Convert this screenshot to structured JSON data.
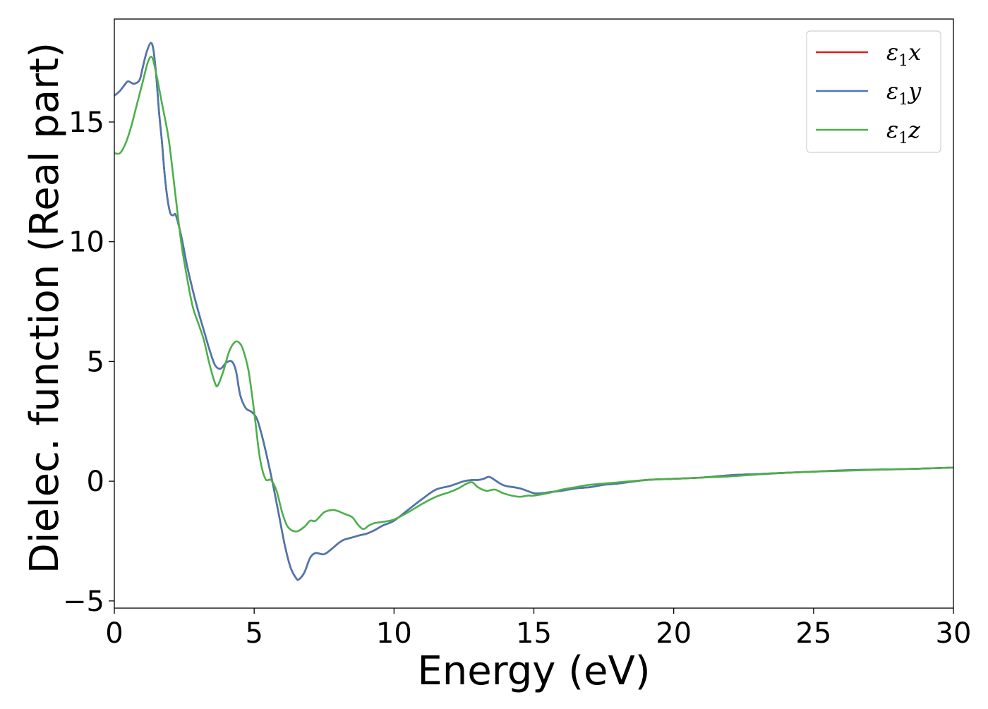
{
  "chart_data": {
    "type": "line",
    "xlabel": "Energy (eV)",
    "ylabel": "Dielec. function (Real part)",
    "xlim": [
      0,
      30
    ],
    "ylim": [
      -5.3,
      19.3
    ],
    "xticks": [
      0,
      5,
      10,
      15,
      20,
      25,
      30
    ],
    "xtick_labels": [
      "0",
      "5",
      "10",
      "15",
      "20",
      "25",
      "30"
    ],
    "yticks": [
      -5,
      0,
      5,
      10,
      15
    ],
    "ytick_labels": [
      "−5",
      "0",
      "5",
      "10",
      "15"
    ],
    "grid": false,
    "legend": "top-right",
    "series": [
      {
        "name": "ε1x",
        "label_main": "ε",
        "label_sub": "1",
        "label_end": "x",
        "color": "#e41a1c",
        "x": [
          0,
          0.2,
          0.4,
          0.5,
          0.7,
          0.9,
          1.0,
          1.15,
          1.3,
          1.4,
          1.5,
          1.6,
          1.7,
          1.8,
          1.9,
          2.0,
          2.1,
          2.2,
          2.4,
          2.6,
          2.8,
          3.0,
          3.2,
          3.4,
          3.6,
          3.8,
          4.0,
          4.2,
          4.35,
          4.5,
          4.7,
          4.9,
          5.1,
          5.3,
          5.5,
          5.7,
          5.9,
          6.1,
          6.3,
          6.5,
          6.6,
          6.8,
          7.0,
          7.2,
          7.5,
          7.8,
          8.0,
          8.2,
          8.5,
          8.8,
          9.0,
          9.3,
          9.6,
          10.0,
          10.5,
          11.0,
          11.5,
          12.0,
          12.5,
          12.8,
          13.0,
          13.2,
          13.4,
          13.6,
          13.8,
          14.0,
          14.5,
          15.0,
          15.3,
          15.6,
          16.0,
          16.5,
          17.0,
          17.5,
          18.0,
          19.0,
          20.0,
          21.0,
          22.0,
          23.0,
          24.0,
          25.0,
          26.0,
          27.0,
          28.0,
          29.0,
          30.0
        ],
        "values": [
          16.1,
          16.3,
          16.6,
          16.7,
          16.6,
          16.75,
          17.2,
          17.9,
          18.3,
          18.0,
          16.9,
          15.4,
          14.2,
          12.8,
          11.8,
          11.2,
          11.1,
          11.1,
          10.2,
          9.0,
          8.0,
          7.1,
          6.3,
          5.5,
          4.85,
          4.7,
          4.95,
          5.0,
          4.6,
          3.6,
          3.05,
          2.9,
          2.6,
          1.8,
          0.8,
          -0.3,
          -1.5,
          -2.7,
          -3.6,
          -4.05,
          -4.1,
          -3.8,
          -3.2,
          -3.0,
          -3.05,
          -2.8,
          -2.6,
          -2.45,
          -2.35,
          -2.25,
          -2.2,
          -2.05,
          -1.85,
          -1.65,
          -1.2,
          -0.75,
          -0.35,
          -0.2,
          0.0,
          0.05,
          0.05,
          0.1,
          0.18,
          0.05,
          -0.1,
          -0.2,
          -0.3,
          -0.5,
          -0.5,
          -0.45,
          -0.4,
          -0.3,
          -0.25,
          -0.15,
          -0.1,
          0.05,
          0.1,
          0.15,
          0.25,
          0.3,
          0.35,
          0.4,
          0.45,
          0.48,
          0.5,
          0.53,
          0.57
        ]
      },
      {
        "name": "ε1y",
        "label_main": "ε",
        "label_sub": "1",
        "label_end": "y",
        "color": "#4a78b0",
        "x": [
          0,
          0.2,
          0.4,
          0.5,
          0.7,
          0.9,
          1.0,
          1.15,
          1.3,
          1.4,
          1.5,
          1.6,
          1.7,
          1.8,
          1.9,
          2.0,
          2.1,
          2.2,
          2.4,
          2.6,
          2.8,
          3.0,
          3.2,
          3.4,
          3.6,
          3.8,
          4.0,
          4.2,
          4.35,
          4.5,
          4.7,
          4.9,
          5.1,
          5.3,
          5.5,
          5.7,
          5.9,
          6.1,
          6.3,
          6.5,
          6.6,
          6.8,
          7.0,
          7.2,
          7.5,
          7.8,
          8.0,
          8.2,
          8.5,
          8.8,
          9.0,
          9.3,
          9.6,
          10.0,
          10.5,
          11.0,
          11.5,
          12.0,
          12.5,
          12.8,
          13.0,
          13.2,
          13.4,
          13.6,
          13.8,
          14.0,
          14.5,
          15.0,
          15.3,
          15.6,
          16.0,
          16.5,
          17.0,
          17.5,
          18.0,
          19.0,
          20.0,
          21.0,
          22.0,
          23.0,
          24.0,
          25.0,
          26.0,
          27.0,
          28.0,
          29.0,
          30.0
        ],
        "values": [
          16.1,
          16.3,
          16.6,
          16.7,
          16.6,
          16.75,
          17.2,
          17.9,
          18.3,
          18.0,
          16.9,
          15.4,
          14.2,
          12.8,
          11.8,
          11.2,
          11.1,
          11.1,
          10.2,
          9.0,
          8.0,
          7.1,
          6.3,
          5.5,
          4.85,
          4.7,
          4.95,
          5.0,
          4.6,
          3.6,
          3.05,
          2.9,
          2.6,
          1.8,
          0.8,
          -0.3,
          -1.5,
          -2.7,
          -3.6,
          -4.05,
          -4.1,
          -3.8,
          -3.2,
          -3.0,
          -3.05,
          -2.8,
          -2.6,
          -2.45,
          -2.35,
          -2.25,
          -2.2,
          -2.05,
          -1.85,
          -1.65,
          -1.2,
          -0.75,
          -0.35,
          -0.2,
          0.0,
          0.05,
          0.05,
          0.1,
          0.18,
          0.05,
          -0.1,
          -0.2,
          -0.3,
          -0.5,
          -0.5,
          -0.45,
          -0.4,
          -0.3,
          -0.25,
          -0.15,
          -0.1,
          0.05,
          0.1,
          0.15,
          0.25,
          0.3,
          0.35,
          0.4,
          0.45,
          0.48,
          0.5,
          0.53,
          0.57
        ]
      },
      {
        "name": "ε1z",
        "label_main": "ε",
        "label_sub": "1",
        "label_end": "z",
        "color": "#4daf4a",
        "x": [
          0,
          0.2,
          0.4,
          0.6,
          0.8,
          1.0,
          1.2,
          1.35,
          1.5,
          1.7,
          1.9,
          2.0,
          2.2,
          2.4,
          2.6,
          2.8,
          3.0,
          3.2,
          3.4,
          3.6,
          3.7,
          3.9,
          4.1,
          4.3,
          4.45,
          4.6,
          4.8,
          5.0,
          5.2,
          5.4,
          5.6,
          5.8,
          6.0,
          6.2,
          6.5,
          6.8,
          7.0,
          7.2,
          7.5,
          7.8,
          8.0,
          8.2,
          8.5,
          8.7,
          8.9,
          9.1,
          9.3,
          9.6,
          10.0,
          10.5,
          11.0,
          11.5,
          12.0,
          12.3,
          12.6,
          12.8,
          13.0,
          13.3,
          13.6,
          13.9,
          14.2,
          14.5,
          14.8,
          15.0,
          15.5,
          16.0,
          16.5,
          17.0,
          18.0,
          19.0,
          20.0,
          21.0,
          22.0,
          23.0,
          24.0,
          25.0,
          26.0,
          27.0,
          28.0,
          29.0,
          30.0
        ],
        "values": [
          13.7,
          13.7,
          14.1,
          14.8,
          15.7,
          16.6,
          17.5,
          17.7,
          17.0,
          15.8,
          14.6,
          13.8,
          11.8,
          9.9,
          8.5,
          7.3,
          6.6,
          5.9,
          4.9,
          4.1,
          4.0,
          4.6,
          5.4,
          5.8,
          5.8,
          5.5,
          4.6,
          2.9,
          1.0,
          0.1,
          0.05,
          -0.4,
          -1.3,
          -1.9,
          -2.1,
          -1.9,
          -1.65,
          -1.65,
          -1.3,
          -1.2,
          -1.25,
          -1.35,
          -1.5,
          -1.8,
          -2.0,
          -1.85,
          -1.75,
          -1.7,
          -1.6,
          -1.3,
          -0.95,
          -0.65,
          -0.45,
          -0.3,
          -0.1,
          -0.05,
          -0.25,
          -0.4,
          -0.35,
          -0.5,
          -0.6,
          -0.65,
          -0.6,
          -0.6,
          -0.5,
          -0.35,
          -0.25,
          -0.15,
          -0.05,
          0.05,
          0.1,
          0.15,
          0.2,
          0.28,
          0.35,
          0.4,
          0.43,
          0.47,
          0.5,
          0.53,
          0.57
        ]
      }
    ]
  }
}
